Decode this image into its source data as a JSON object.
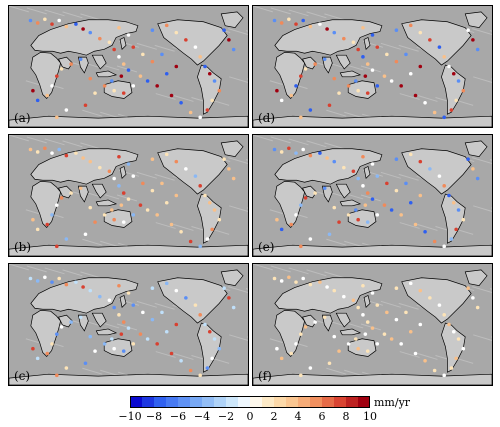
{
  "panels": [
    {
      "id": "a",
      "label": "(a)"
    },
    {
      "id": "b",
      "label": "(b)"
    },
    {
      "id": "c",
      "label": "(c)"
    },
    {
      "id": "d",
      "label": "(d)"
    },
    {
      "id": "e",
      "label": "(e)"
    },
    {
      "id": "f",
      "label": "(f)"
    }
  ],
  "colorbar": {
    "unit": "mm/yr",
    "min": -10,
    "max": 10,
    "ticks": [
      "−10",
      "−8",
      "−6",
      "−4",
      "−2",
      "0",
      "2",
      "4",
      "6",
      "8",
      "10"
    ],
    "colors": [
      "#0a0ad0",
      "#2e5ff0",
      "#5a8ef5",
      "#8ab8f5",
      "#c0e0fa",
      "#ffffff",
      "#fde4b8",
      "#f9c08a",
      "#f08a5a",
      "#d84030",
      "#a00010"
    ]
  }
}
